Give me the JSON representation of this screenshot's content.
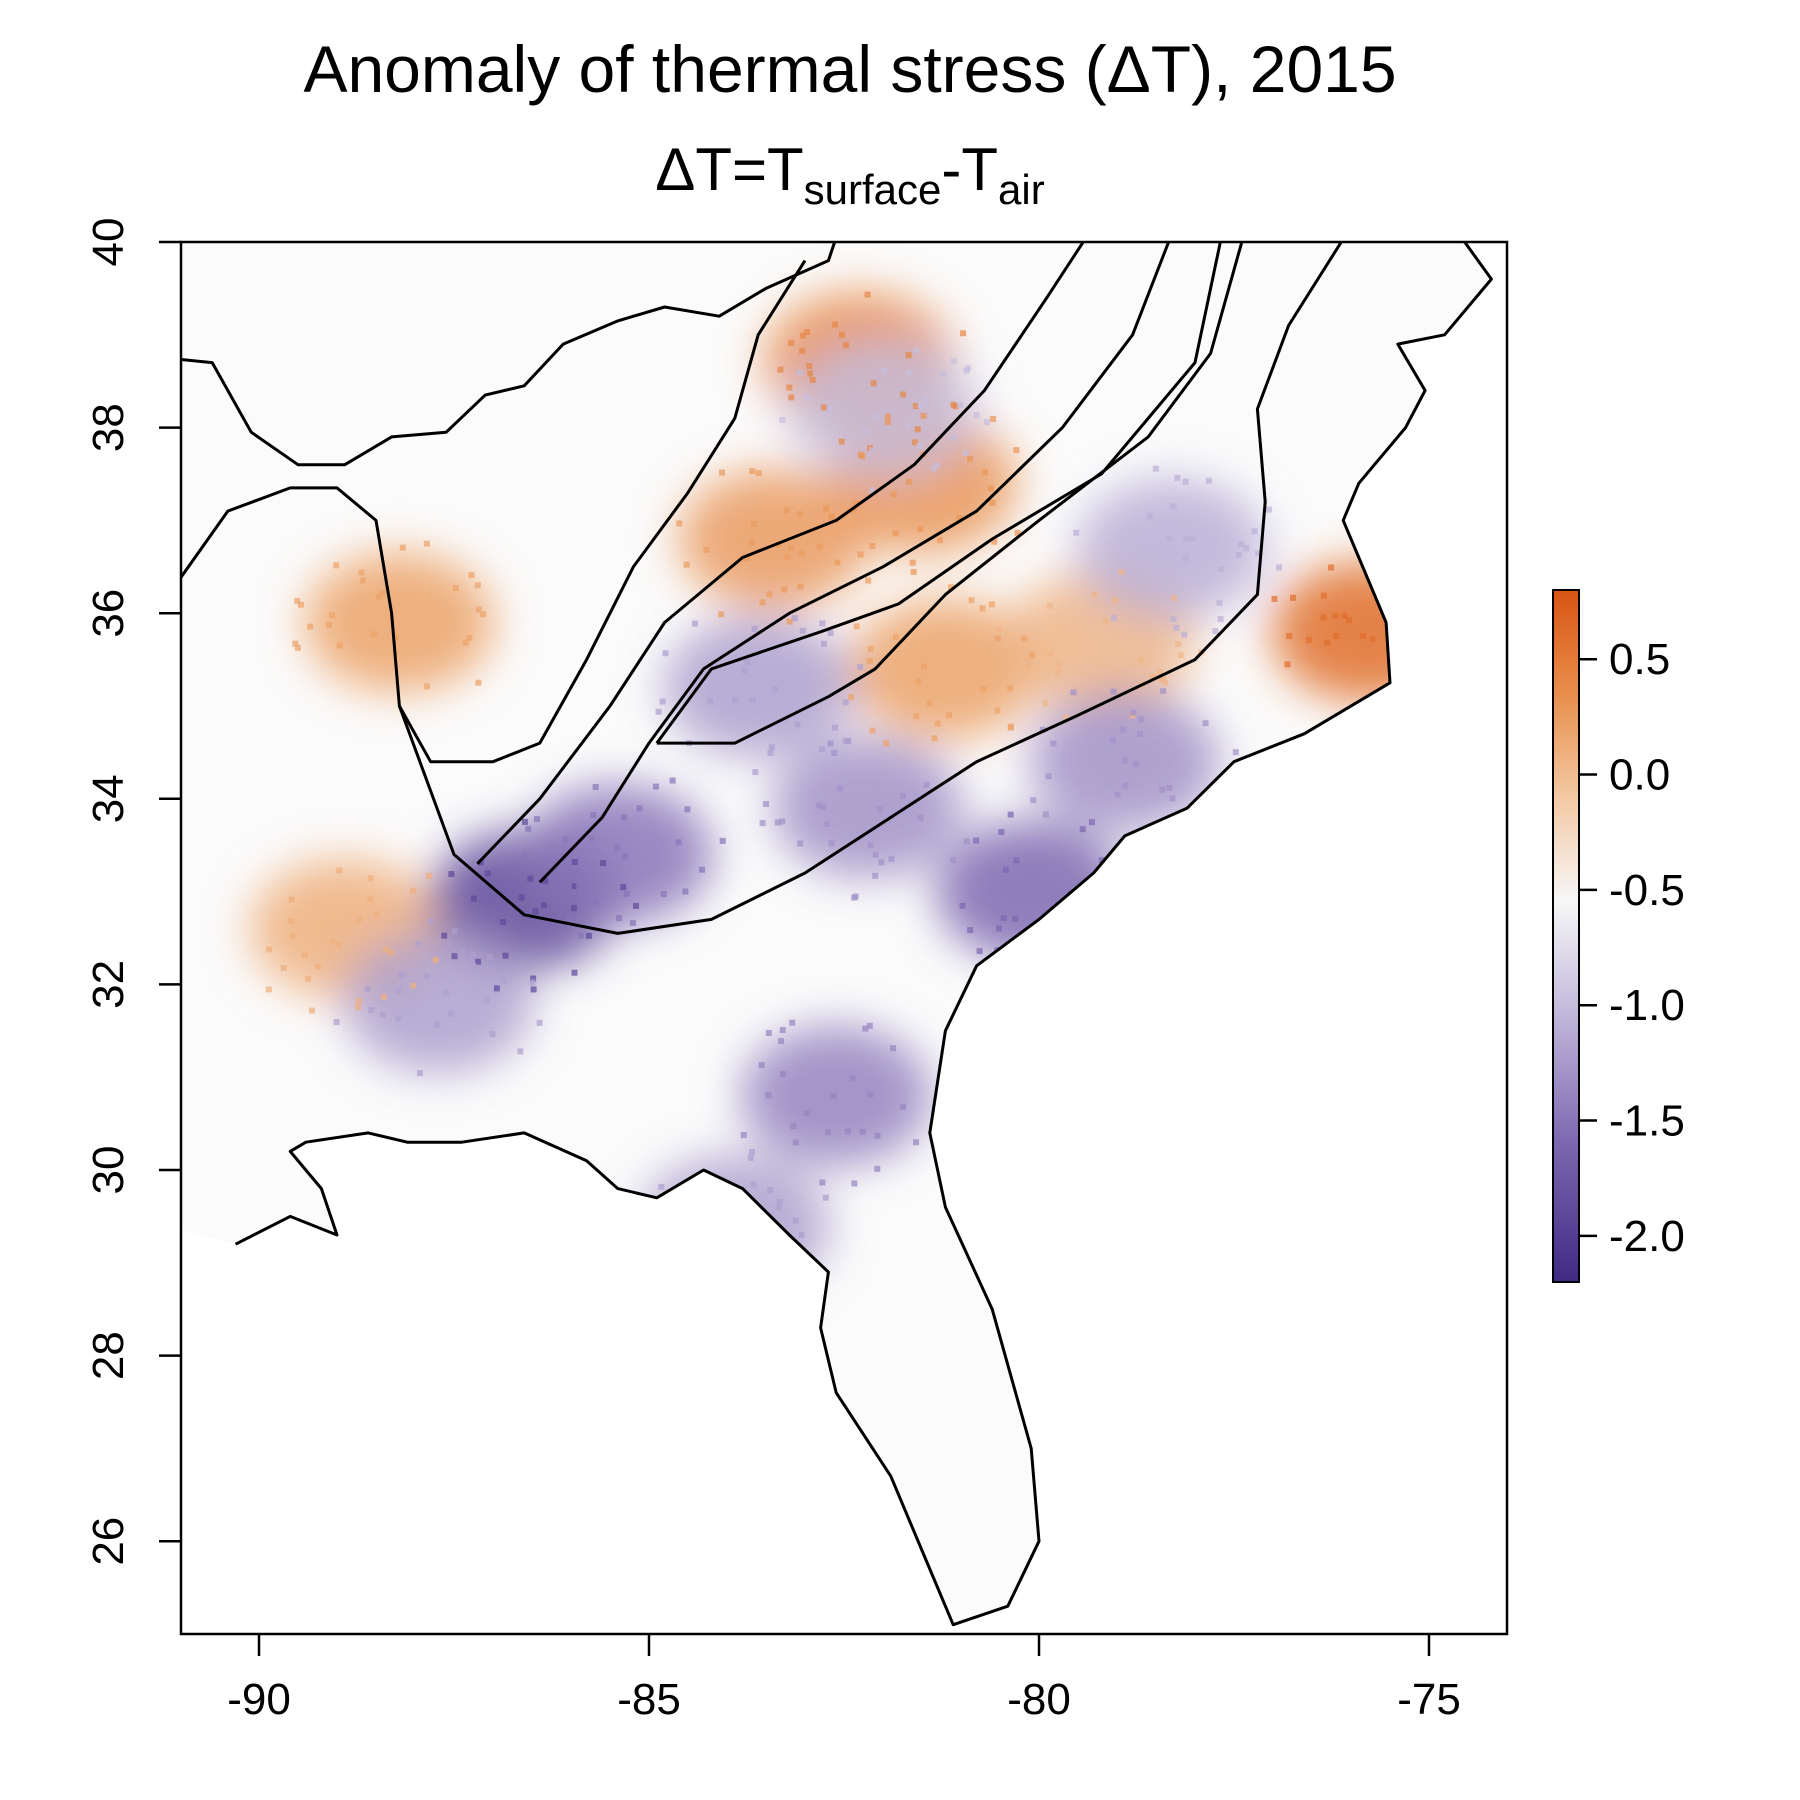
{
  "title": {
    "line1": "Anomaly of thermal stress (ΔT), 2015",
    "line2_main": "ΔT=T",
    "line2_sub1": "surface",
    "line2_mid": "-T",
    "line2_sub2": "air"
  },
  "x_axis": {
    "range": [
      -91,
      -74
    ],
    "ticks": [
      -90,
      -85,
      -80,
      -75
    ],
    "tick_labels": [
      "-90",
      "-85",
      "-80",
      "-75"
    ]
  },
  "y_axis": {
    "range": [
      25,
      40
    ],
    "ticks": [
      26,
      28,
      30,
      32,
      34,
      36,
      38,
      40
    ],
    "tick_labels": [
      "26",
      "28",
      "30",
      "32",
      "34",
      "36",
      "38",
      "40"
    ]
  },
  "colorbar": {
    "range": [
      -2.2,
      0.8
    ],
    "ticks": [
      0.5,
      0.0,
      -0.5,
      -1.0,
      -1.5,
      -2.0
    ],
    "tick_labels": [
      "0.5",
      "0.0",
      "-0.5",
      "-1.0",
      "-1.5",
      "-2.0"
    ],
    "colors": {
      "low": "#3f2a84",
      "mid": "#f7f7f7",
      "high": "#d95412"
    }
  },
  "colors": {
    "boundary": "#000000",
    "frame": "#000000"
  },
  "chart_data": {
    "type": "heatmap",
    "title": "Anomaly of thermal stress (ΔT), 2015",
    "subtitle": "ΔT=Tsurface-Tair",
    "xlim": [
      -91,
      -74
    ],
    "ylim": [
      25,
      40
    ],
    "value_range": [
      -2.2,
      0.8
    ],
    "legend": "right",
    "hotspots": [
      {
        "lon": -82.3,
        "lat": 38.7,
        "value": 0.4
      },
      {
        "lon": -81.5,
        "lat": 37.4,
        "value": 0.3
      },
      {
        "lon": -83.4,
        "lat": 36.8,
        "value": 0.25
      },
      {
        "lon": -88.2,
        "lat": 35.9,
        "value": 0.2
      },
      {
        "lon": -88.9,
        "lat": 32.6,
        "value": 0.1
      },
      {
        "lon": -81.2,
        "lat": 35.4,
        "value": 0.2
      },
      {
        "lon": -75.8,
        "lat": 35.8,
        "value": 0.6
      },
      {
        "lon": -79.2,
        "lat": 35.7,
        "value": 0.05
      },
      {
        "lon": -86.6,
        "lat": 32.9,
        "value": -1.9
      },
      {
        "lon": -85.4,
        "lat": 33.4,
        "value": -1.5
      },
      {
        "lon": -80.1,
        "lat": 33.0,
        "value": -1.6
      },
      {
        "lon": -78.9,
        "lat": 34.4,
        "value": -1.3
      },
      {
        "lon": -82.6,
        "lat": 30.8,
        "value": -1.4
      },
      {
        "lon": -87.7,
        "lat": 31.8,
        "value": -1.2
      },
      {
        "lon": -82.2,
        "lat": 33.9,
        "value": -1.3
      },
      {
        "lon": -83.6,
        "lat": 35.2,
        "value": -1.2
      },
      {
        "lon": -78.3,
        "lat": 36.7,
        "value": -1.1
      },
      {
        "lon": -82.0,
        "lat": 38.2,
        "value": -1.0
      },
      {
        "lon": -83.9,
        "lat": 29.4,
        "value": -1.2
      }
    ]
  }
}
